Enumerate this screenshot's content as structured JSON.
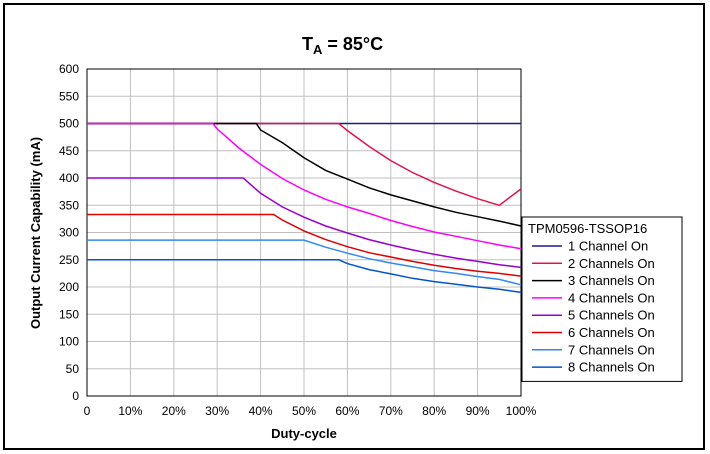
{
  "chart_data": {
    "type": "line",
    "title_main": "T",
    "title_sub": "A",
    "title_rest": " = 85°C",
    "xlabel": "Duty-cycle",
    "ylabel": "Output Current Capability (mA)",
    "xlim": [
      0,
      100
    ],
    "ylim": [
      0,
      600
    ],
    "x_ticks": [
      0,
      10,
      20,
      30,
      40,
      50,
      60,
      70,
      80,
      90,
      100
    ],
    "x_tick_labels": [
      "0",
      "10%",
      "20%",
      "30%",
      "40%",
      "50%",
      "60%",
      "70%",
      "80%",
      "90%",
      "100%"
    ],
    "y_ticks": [
      0,
      50,
      100,
      150,
      200,
      250,
      300,
      350,
      400,
      450,
      500,
      550,
      600
    ],
    "y_tick_labels": [
      "0",
      "50",
      "100",
      "150",
      "200",
      "250",
      "300",
      "350",
      "400",
      "450",
      "500",
      "550",
      "600"
    ],
    "grid": true,
    "legend_title": "TPM0596-TSSOP16",
    "legend_position": "right",
    "series": [
      {
        "name": "1 Channel On",
        "color": "#1a1a8c",
        "x": [
          0,
          100
        ],
        "y": [
          500,
          500
        ]
      },
      {
        "name": "2 Channels On",
        "color": "#e0144c",
        "x": [
          0,
          58,
          60,
          65,
          70,
          75,
          80,
          85,
          90,
          95,
          100
        ],
        "y": [
          500,
          500,
          487,
          458,
          432,
          410,
          392,
          376,
          362,
          350,
          380
        ]
      },
      {
        "name": "3 Channels On",
        "color": "#000000",
        "x": [
          0,
          39,
          40,
          45,
          50,
          55,
          60,
          65,
          70,
          75,
          80,
          85,
          90,
          95,
          100
        ],
        "y": [
          500,
          500,
          488,
          465,
          437,
          414,
          398,
          382,
          369,
          358,
          347,
          337,
          329,
          321,
          312
        ]
      },
      {
        "name": "4 Channels On",
        "color": "#ff00ff",
        "x": [
          0,
          29,
          30,
          35,
          40,
          45,
          50,
          55,
          60,
          65,
          70,
          75,
          80,
          85,
          90,
          95,
          100
        ],
        "y": [
          500,
          500,
          490,
          455,
          425,
          399,
          378,
          361,
          347,
          335,
          322,
          311,
          301,
          293,
          285,
          277,
          270
        ]
      },
      {
        "name": "5 Channels On",
        "color": "#9900cc",
        "x": [
          0,
          36,
          40,
          45,
          50,
          55,
          60,
          65,
          70,
          75,
          80,
          85,
          90,
          95,
          100
        ],
        "y": [
          400,
          400,
          372,
          347,
          328,
          312,
          299,
          287,
          277,
          268,
          260,
          253,
          247,
          241,
          236
        ]
      },
      {
        "name": "6 Channels On",
        "color": "#e00000",
        "x": [
          0,
          43,
          45,
          50,
          55,
          60,
          65,
          70,
          75,
          80,
          85,
          90,
          95,
          100
        ],
        "y": [
          333,
          333,
          323,
          303,
          287,
          274,
          263,
          255,
          247,
          240,
          234,
          229,
          225,
          220
        ]
      },
      {
        "name": "7 Channels On",
        "color": "#3388ee",
        "x": [
          0,
          50,
          55,
          60,
          65,
          70,
          75,
          80,
          85,
          90,
          95,
          100
        ],
        "y": [
          286,
          286,
          273,
          262,
          252,
          244,
          237,
          230,
          225,
          219,
          214,
          204
        ]
      },
      {
        "name": "8 Channels On",
        "color": "#0055cc",
        "x": [
          0,
          58,
          60,
          65,
          70,
          75,
          80,
          85,
          90,
          95,
          100
        ],
        "y": [
          250,
          250,
          243,
          232,
          224,
          216,
          210,
          205,
          200,
          196,
          190
        ]
      }
    ]
  }
}
